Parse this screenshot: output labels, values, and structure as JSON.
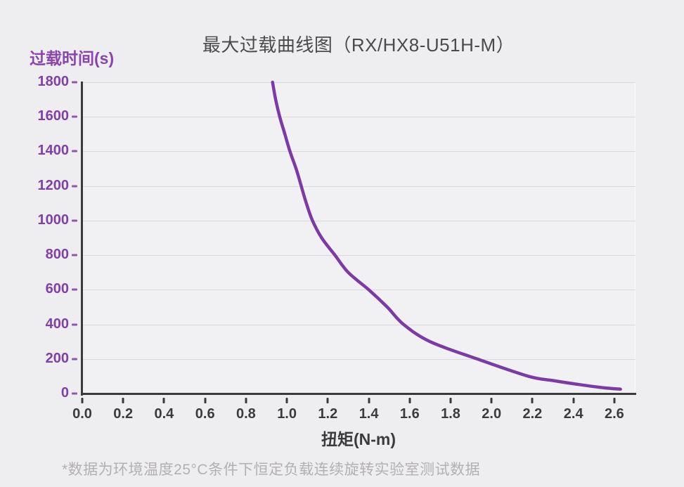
{
  "footnote": "*数据为环境温度25°C条件下恒定负载连续旋转实验室测试数据",
  "chart_data": {
    "type": "line",
    "title": "最大过载曲线图（RX/HX8-U51H-M）",
    "xlabel": "扭矩(N-m)",
    "ylabel": "过载时间(s)",
    "xlim": [
      0,
      2.7
    ],
    "ylim": [
      0,
      1800
    ],
    "x_ticks": [
      "0.0",
      "0.2",
      "0.4",
      "0.6",
      "0.8",
      "1.0",
      "1.2",
      "1.4",
      "1.6",
      "1.8",
      "2.0",
      "2.2",
      "2.4",
      "2.6"
    ],
    "y_ticks": [
      0,
      200,
      400,
      600,
      800,
      1000,
      1200,
      1400,
      1600,
      1800
    ],
    "grid": "horizontal-only",
    "legend": "none",
    "series": [
      {
        "name": "最大过载曲线 RX/HX8-U51H-M",
        "color": "#7b3aa4",
        "points": [
          [
            0.93,
            1800
          ],
          [
            0.945,
            1700
          ],
          [
            0.965,
            1600
          ],
          [
            0.99,
            1500
          ],
          [
            1.015,
            1400
          ],
          [
            1.045,
            1300
          ],
          [
            1.07,
            1200
          ],
          [
            1.095,
            1100
          ],
          [
            1.125,
            1000
          ],
          [
            1.17,
            900
          ],
          [
            1.235,
            800
          ],
          [
            1.3,
            700
          ],
          [
            1.4,
            600
          ],
          [
            1.49,
            500
          ],
          [
            1.57,
            400
          ],
          [
            1.7,
            300
          ],
          [
            1.93,
            200
          ],
          [
            2.18,
            100
          ],
          [
            2.3,
            75
          ],
          [
            2.44,
            50
          ],
          [
            2.55,
            33
          ],
          [
            2.63,
            25
          ]
        ]
      }
    ],
    "colors": {
      "curve": "#7b3aa4",
      "axis_line": "#3a3a3a",
      "y_tick_label": "#8040a8",
      "y_axis_title": "#8a44ae",
      "x_tick_label": "#3b3b3b",
      "title": "#4a4a4a",
      "footnote": "#b2b0b3",
      "gridline": "#d9d8db",
      "plot_background": "#f1f0f3",
      "page_background": "#eeedf0"
    }
  }
}
